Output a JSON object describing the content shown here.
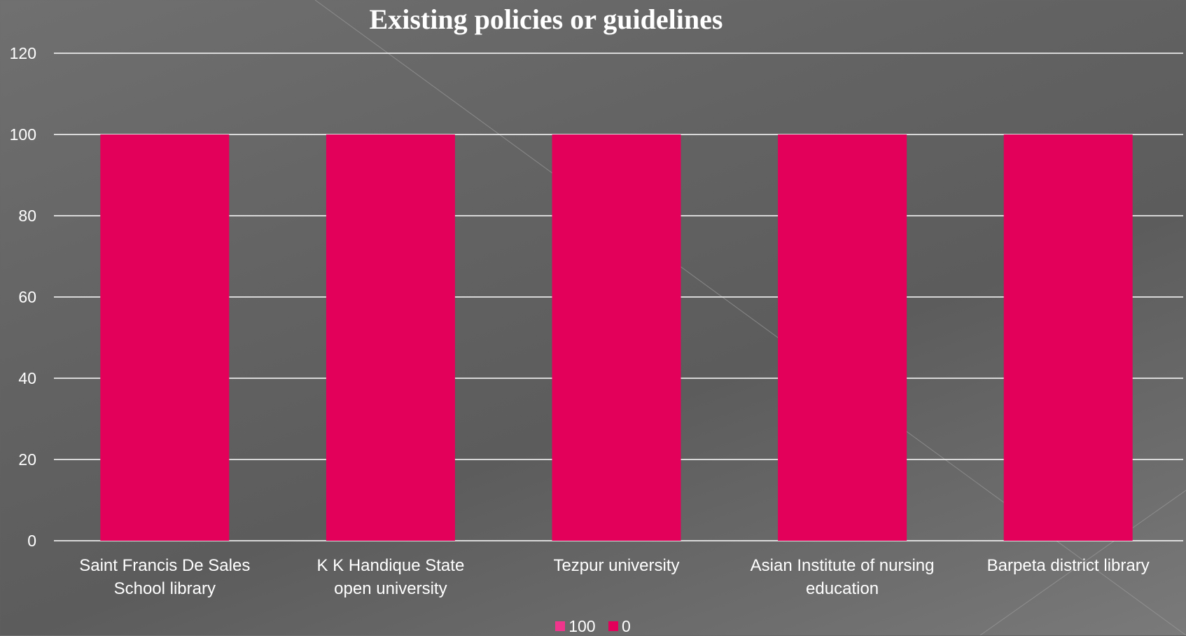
{
  "chart_data": {
    "type": "bar",
    "title": "Existing policies or guidelines",
    "categories": [
      [
        "Saint Francis De Sales",
        "School library"
      ],
      [
        "K K Handique State",
        "open university"
      ],
      [
        "Tezpur university"
      ],
      [
        "Asian Institute of nursing",
        "education"
      ],
      [
        "Barpeta district library"
      ]
    ],
    "series": [
      {
        "name": "100",
        "values": [
          0,
          0,
          0,
          0,
          0
        ],
        "color": "#f0358c"
      },
      {
        "name": "0",
        "values": [
          100,
          100,
          100,
          100,
          100
        ],
        "color": "#e3005a"
      }
    ],
    "ylim": [
      0,
      120
    ],
    "yticks": [
      0,
      20,
      40,
      60,
      80,
      100,
      120
    ],
    "grid": true,
    "legend_position": "bottom"
  }
}
